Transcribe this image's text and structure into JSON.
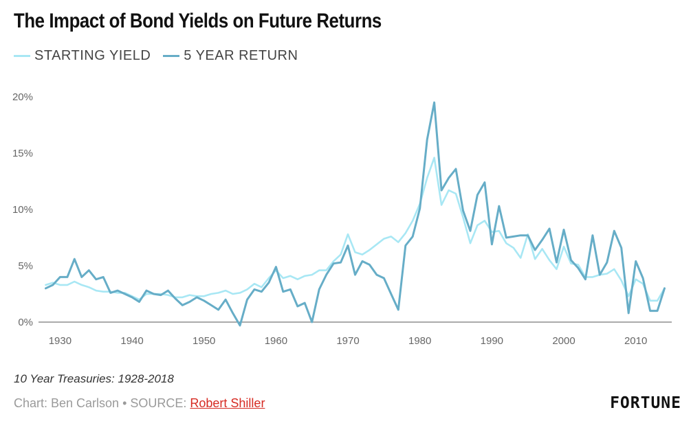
{
  "title": "The Impact of Bond Yields on Future Returns",
  "caption": "10 Year Treasuries: 1928-2018",
  "credit": {
    "prefix": "Chart: Ben Carlson • SOURCE: ",
    "source_link": "Robert Shiller"
  },
  "brand": "FORTUNE",
  "colors": {
    "starting_yield": "#a8e7f4",
    "five_year_return": "#66adc7",
    "baseline": "#555555",
    "tick_text": "#666666",
    "link": "#d62a22"
  },
  "chart_data": {
    "type": "line",
    "title": "The Impact of Bond Yields on Future Returns",
    "xlabel": "",
    "ylabel": "",
    "xlim": [
      1927,
      2015
    ],
    "ylim": [
      0,
      20
    ],
    "grid": false,
    "legend_position": "top-left",
    "x_ticks": [
      1930,
      1940,
      1950,
      1960,
      1970,
      1980,
      1990,
      2000,
      2010
    ],
    "y_ticks": [
      {
        "value": 0,
        "label": "0%"
      },
      {
        "value": 5,
        "label": "5%"
      },
      {
        "value": 10,
        "label": "10%"
      },
      {
        "value": 15,
        "label": "15%"
      },
      {
        "value": 20,
        "label": "20%"
      }
    ],
    "series": [
      {
        "name": "STARTING YIELD",
        "color": "#a8e7f4",
        "x": [
          1928,
          1929,
          1930,
          1931,
          1932,
          1933,
          1934,
          1935,
          1936,
          1937,
          1938,
          1939,
          1940,
          1941,
          1942,
          1943,
          1944,
          1945,
          1946,
          1947,
          1948,
          1949,
          1950,
          1951,
          1952,
          1953,
          1954,
          1955,
          1956,
          1957,
          1958,
          1959,
          1960,
          1961,
          1962,
          1963,
          1964,
          1965,
          1966,
          1967,
          1968,
          1969,
          1970,
          1971,
          1972,
          1973,
          1974,
          1975,
          1976,
          1977,
          1978,
          1979,
          1980,
          1981,
          1982,
          1983,
          1984,
          1985,
          1986,
          1987,
          1988,
          1989,
          1990,
          1991,
          1992,
          1993,
          1994,
          1995,
          1996,
          1997,
          1998,
          1999,
          2000,
          2001,
          2002,
          2003,
          2004,
          2005,
          2006,
          2007,
          2008,
          2009,
          2010,
          2011,
          2012,
          2013,
          2014
        ],
        "values": [
          3.3,
          3.5,
          3.3,
          3.3,
          3.6,
          3.3,
          3.1,
          2.8,
          2.7,
          2.7,
          2.6,
          2.6,
          2.3,
          2.0,
          2.5,
          2.5,
          2.5,
          2.4,
          2.2,
          2.2,
          2.4,
          2.3,
          2.3,
          2.5,
          2.6,
          2.8,
          2.5,
          2.6,
          2.9,
          3.4,
          3.1,
          3.9,
          4.6,
          3.9,
          4.1,
          3.8,
          4.1,
          4.2,
          4.6,
          4.6,
          5.4,
          6.0,
          7.8,
          6.2,
          6.0,
          6.4,
          6.9,
          7.4,
          7.6,
          7.1,
          7.9,
          9.0,
          10.5,
          12.8,
          14.6,
          10.4,
          11.7,
          11.4,
          9.3,
          7.0,
          8.6,
          9.0,
          8.0,
          8.1,
          7.0,
          6.6,
          5.7,
          7.8,
          5.6,
          6.5,
          5.5,
          4.7,
          6.7,
          5.2,
          5.1,
          4.0,
          4.0,
          4.2,
          4.3,
          4.7,
          3.7,
          2.3,
          3.8,
          3.4,
          1.9,
          1.9,
          3.0
        ]
      },
      {
        "name": "5 YEAR RETURN",
        "color": "#66adc7",
        "x": [
          1928,
          1929,
          1930,
          1931,
          1932,
          1933,
          1934,
          1935,
          1936,
          1937,
          1938,
          1939,
          1940,
          1941,
          1942,
          1943,
          1944,
          1945,
          1946,
          1947,
          1948,
          1949,
          1950,
          1951,
          1952,
          1953,
          1954,
          1955,
          1956,
          1957,
          1958,
          1959,
          1960,
          1961,
          1962,
          1963,
          1964,
          1965,
          1966,
          1967,
          1968,
          1969,
          1970,
          1971,
          1972,
          1973,
          1974,
          1975,
          1976,
          1977,
          1978,
          1979,
          1980,
          1981,
          1982,
          1983,
          1984,
          1985,
          1986,
          1987,
          1988,
          1989,
          1990,
          1991,
          1992,
          1993,
          1994,
          1995,
          1996,
          1997,
          1998,
          1999,
          2000,
          2001,
          2002,
          2003,
          2004,
          2005,
          2006,
          2007,
          2008,
          2009,
          2010,
          2011,
          2012,
          2013,
          2014
        ],
        "values": [
          3.0,
          3.3,
          4.0,
          4.0,
          5.6,
          4.0,
          4.6,
          3.8,
          4.0,
          2.6,
          2.8,
          2.5,
          2.2,
          1.8,
          2.8,
          2.5,
          2.4,
          2.8,
          2.1,
          1.5,
          1.8,
          2.2,
          1.9,
          1.5,
          1.1,
          2.0,
          0.8,
          -0.3,
          2.0,
          2.9,
          2.7,
          3.5,
          4.9,
          2.7,
          2.9,
          1.4,
          1.7,
          0.0,
          2.9,
          4.2,
          5.2,
          5.3,
          6.8,
          4.2,
          5.4,
          5.1,
          4.2,
          3.9,
          2.5,
          1.1,
          6.8,
          7.6,
          10.1,
          16.2,
          19.5,
          11.7,
          12.8,
          13.6,
          9.9,
          8.1,
          11.3,
          12.4,
          6.9,
          10.3,
          7.5,
          7.6,
          7.7,
          7.7,
          6.4,
          7.3,
          8.3,
          5.3,
          8.2,
          5.5,
          4.8,
          3.8,
          7.7,
          4.2,
          5.3,
          8.1,
          6.6,
          0.8,
          5.4,
          3.9,
          1.0,
          1.0,
          3.0
        ]
      }
    ]
  }
}
